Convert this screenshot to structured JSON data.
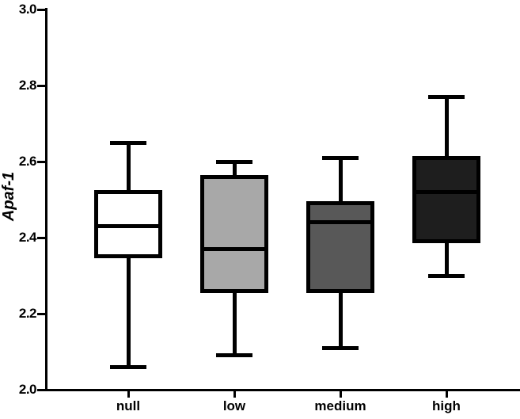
{
  "chart_data": {
    "type": "boxplot",
    "title": "",
    "xlabel": "",
    "ylabel": "Apaf-1",
    "ylim": [
      2.0,
      3.0
    ],
    "yticks": [
      2.0,
      2.2,
      2.4,
      2.6,
      2.8,
      3.0
    ],
    "ytick_labels": [
      "2.0",
      "2.2",
      "2.4",
      "2.6",
      "2.8",
      "3.0"
    ],
    "categories": [
      "null",
      "low",
      "medium",
      "high"
    ],
    "series": [
      {
        "name": "null",
        "min": 2.06,
        "q1": 2.35,
        "median": 2.43,
        "q3": 2.52,
        "max": 2.65,
        "fill": "#ffffff"
      },
      {
        "name": "low",
        "min": 2.09,
        "q1": 2.26,
        "median": 2.37,
        "q3": 2.56,
        "max": 2.6,
        "fill": "#a8a8a8"
      },
      {
        "name": "medium",
        "min": 2.11,
        "q1": 2.26,
        "median": 2.44,
        "q3": 2.49,
        "max": 2.61,
        "fill": "#585858"
      },
      {
        "name": "high",
        "min": 2.3,
        "q1": 2.39,
        "median": 2.52,
        "q3": 2.61,
        "max": 2.77,
        "fill": "#1e1e1e"
      }
    ],
    "colors": {
      "axis": "#000000",
      "stroke": "#000000",
      "background": "#ffffff"
    },
    "grid": false,
    "legend": "none"
  }
}
